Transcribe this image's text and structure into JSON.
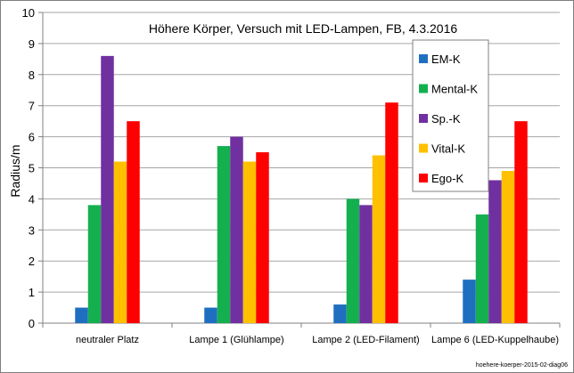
{
  "chart_data": {
    "type": "bar",
    "title": "Höhere Körper, Versuch mit LED-Lampen, FB, 4.3.2016",
    "ylabel": "Radius/m",
    "xlabel": "",
    "ylim": [
      0,
      10
    ],
    "yticks": [
      "0",
      "1",
      "2",
      "3",
      "4",
      "5",
      "6",
      "7",
      "8",
      "9",
      "10"
    ],
    "categories": [
      "neutraler Platz",
      "Lampe 1 (Glühlampe)",
      "Lampe 2 (LED-Filament)",
      "Lampe 6 (LED-Kuppelhaube)"
    ],
    "series": [
      {
        "name": "EM-K",
        "color": "#1f6fc0",
        "values": [
          0.5,
          0.5,
          0.6,
          1.4
        ]
      },
      {
        "name": "Mental-K",
        "color": "#14b050",
        "values": [
          3.8,
          5.7,
          4.0,
          3.5
        ]
      },
      {
        "name": "Sp.-K",
        "color": "#7030a0",
        "values": [
          8.6,
          6.0,
          3.8,
          4.6
        ]
      },
      {
        "name": "Vital-K",
        "color": "#ffc000",
        "values": [
          5.2,
          5.2,
          5.4,
          4.9
        ]
      },
      {
        "name": "Ego-K",
        "color": "#ff0000",
        "values": [
          6.5,
          5.5,
          7.1,
          6.5
        ]
      }
    ],
    "grid": true,
    "legend_position": "top-right",
    "footnote": "hoehere-koerper-2015-02-diag06"
  }
}
